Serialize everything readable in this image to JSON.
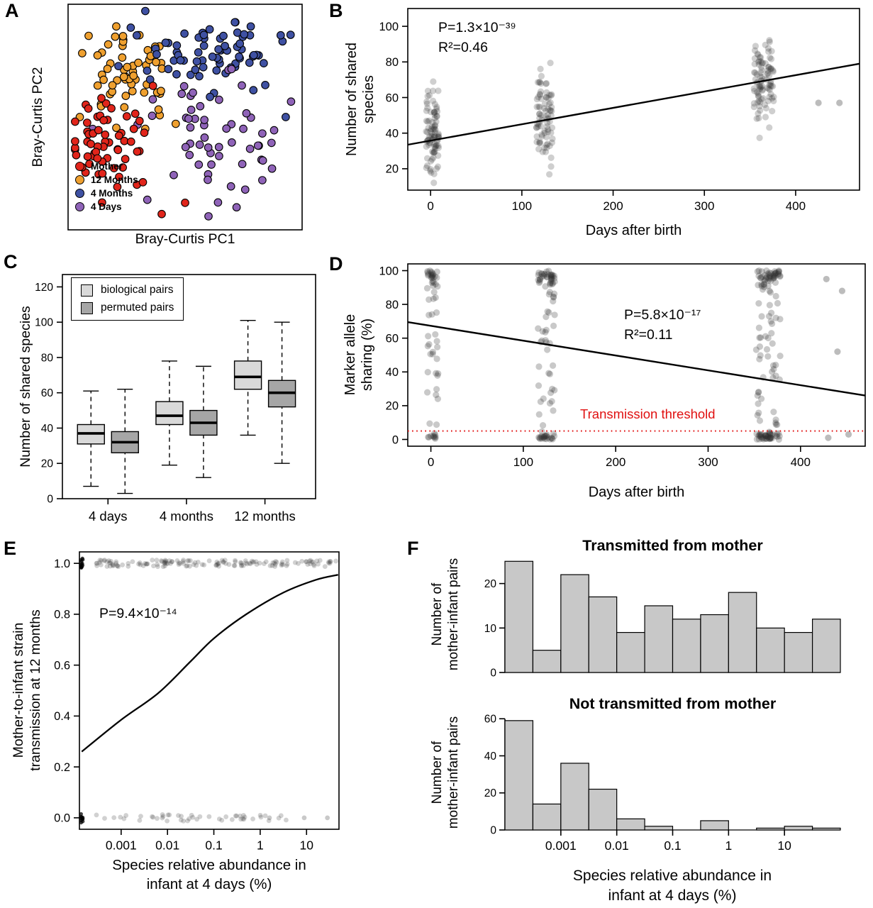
{
  "chart_data": [
    {
      "panel": "A",
      "type": "scatter",
      "xlabel": "Bray-Curtis PC1",
      "ylabel": "Bray-Curtis PC2",
      "legend": [
        {
          "label": "Mother",
          "color": "#e1251b"
        },
        {
          "label": "12 Months",
          "color": "#efa02f"
        },
        {
          "label": "4 Months",
          "color": "#3f51a3"
        },
        {
          "label": "4 Days",
          "color": "#8f63b8"
        }
      ],
      "groups": [
        {
          "name": "12 Months",
          "color": "#efa02f",
          "n": 58,
          "cx": 0.27,
          "cy": 0.7,
          "sx": 0.1,
          "sy": 0.11,
          "extras": [
            [
              0.05,
              0.5
            ],
            [
              0.46,
              0.47
            ]
          ]
        },
        {
          "name": "4 Months",
          "color": "#3f51a3",
          "n": 72,
          "cx": 0.6,
          "cy": 0.79,
          "sx": 0.16,
          "sy": 0.095,
          "extras": [
            [
              0.33,
              0.97
            ],
            [
              0.93,
              0.5
            ]
          ]
        },
        {
          "name": "4 Days",
          "color": "#8f63b8",
          "n": 55,
          "cx": 0.63,
          "cy": 0.44,
          "sx": 0.155,
          "sy": 0.13,
          "extras": [
            [
              0.72,
              0.1
            ],
            [
              0.83,
              0.22
            ],
            [
              0.6,
              0.06
            ]
          ]
        },
        {
          "name": "Mother",
          "color": "#e1251b",
          "n": 60,
          "cx": 0.16,
          "cy": 0.4,
          "sx": 0.085,
          "sy": 0.13,
          "extras": [
            [
              0.4,
              0.07
            ],
            [
              0.5,
              0.12
            ]
          ]
        }
      ]
    },
    {
      "panel": "B",
      "type": "scatter",
      "xlabel": "Days after birth",
      "ylabel_lines": [
        "Number of shared",
        "species"
      ],
      "annotation": [
        "P=1.3×10⁻³⁹",
        "R²=0.46"
      ],
      "xlim": [
        -25,
        470
      ],
      "ylim": [
        8,
        110
      ],
      "xticks": [
        0,
        100,
        200,
        300,
        400
      ],
      "yticks": [
        20,
        40,
        60,
        80,
        100
      ],
      "clusters": [
        {
          "x": 2,
          "n": 92,
          "y_mean": 40,
          "y_sd": 13,
          "y_min": 10,
          "y_max": 76,
          "x_jitter": 7
        },
        {
          "x": 125,
          "n": 82,
          "y_mean": 50,
          "y_sd": 12,
          "y_min": 16,
          "y_max": 80,
          "x_jitter": 9
        },
        {
          "x": 365,
          "n": 96,
          "y_mean": 70,
          "y_sd": 12,
          "y_min": 36,
          "y_max": 102,
          "x_jitter": 11
        }
      ],
      "extra_points": [
        [
          425,
          57
        ],
        [
          448,
          57
        ]
      ],
      "regression": {
        "x1": -25,
        "y1": 33.5,
        "x2": 470,
        "y2": 79
      }
    },
    {
      "panel": "C",
      "type": "box",
      "ylabel": "Number of shared species",
      "ylim": [
        0,
        127
      ],
      "yticks": [
        0,
        20,
        40,
        60,
        80,
        100,
        120
      ],
      "categories": [
        "4 days",
        "4 months",
        "12 months"
      ],
      "series": [
        {
          "name": "biological pairs",
          "color": "#d9d9d9",
          "stats": [
            {
              "lo": 7,
              "q1": 31,
              "med": 37,
              "q3": 42,
              "hi": 61
            },
            {
              "lo": 19,
              "q1": 42,
              "med": 47,
              "q3": 55,
              "hi": 78
            },
            {
              "lo": 36,
              "q1": 62,
              "med": 69,
              "q3": 78,
              "hi": 101
            }
          ]
        },
        {
          "name": "permuted pairs",
          "color": "#a6a6a6",
          "stats": [
            {
              "lo": 3,
              "q1": 26,
              "med": 32,
              "q3": 38,
              "hi": 62
            },
            {
              "lo": 12,
              "q1": 36,
              "med": 43,
              "q3": 50,
              "hi": 75
            },
            {
              "lo": 20,
              "q1": 52,
              "med": 60,
              "q3": 67,
              "hi": 100
            }
          ]
        }
      ]
    },
    {
      "panel": "D",
      "type": "scatter",
      "xlabel": "Days after birth",
      "ylabel_lines": [
        "Marker allele",
        "sharing (%)"
      ],
      "annotation": [
        "P=5.8×10⁻¹⁷",
        "R²=0.11"
      ],
      "threshold": {
        "y": 5,
        "label": "Transmission threshold",
        "color": "#e01010"
      },
      "xlim": [
        -25,
        470
      ],
      "ylim": [
        -4,
        104
      ],
      "xticks": [
        0,
        100,
        200,
        300,
        400
      ],
      "yticks": [
        0,
        20,
        40,
        60,
        80,
        100
      ],
      "clusters": [
        {
          "x": 2,
          "n": 62,
          "x_jitter": 6,
          "frac_top": 0.42,
          "frac_bot": 0.2
        },
        {
          "x": 125,
          "n": 96,
          "x_jitter": 9,
          "frac_top": 0.38,
          "frac_bot": 0.22
        },
        {
          "x": 365,
          "n": 140,
          "x_jitter": 13,
          "frac_top": 0.3,
          "frac_bot": 0.32
        }
      ],
      "extra_points": [
        [
          428,
          95
        ],
        [
          445,
          88
        ],
        [
          440,
          52
        ],
        [
          452,
          3
        ],
        [
          430,
          1
        ]
      ],
      "regression": {
        "x1": -25,
        "y1": 69.5,
        "x2": 470,
        "y2": 26
      }
    },
    {
      "panel": "E",
      "type": "logistic-scatter",
      "xlabel_lines": [
        "Species relative abundance in",
        "infant at 4 days (%)"
      ],
      "ylabel_lines": [
        "Mother-to-infant strain",
        "transmission at 12 months"
      ],
      "annotation": [
        "P=9.4×10⁻¹⁴"
      ],
      "xlim_log10": [
        -3.9,
        1.7
      ],
      "ylim": [
        -0.045,
        1.045
      ],
      "xticks": [
        {
          "v": -3,
          "label": "0.001"
        },
        {
          "v": -2,
          "label": "0.01"
        },
        {
          "v": -1,
          "label": "0.1"
        },
        {
          "v": 0,
          "label": "1"
        },
        {
          "v": 1,
          "label": "10"
        }
      ],
      "yticks": [
        {
          "v": 0,
          "label": "0.0"
        },
        {
          "v": 0.2,
          "label": "0.2"
        },
        {
          "v": 0.4,
          "label": "0.4"
        },
        {
          "v": 0.6,
          "label": "0.6"
        },
        {
          "v": 0.8,
          "label": "0.8"
        },
        {
          "v": 1,
          "label": "1.0"
        }
      ],
      "edge_blobs": [
        {
          "x": -3.85,
          "y": 1.0,
          "n": 12
        },
        {
          "x": -3.85,
          "y": 0.0,
          "n": 10
        }
      ],
      "spreads": [
        {
          "y": 1.0,
          "n": 150,
          "x_min": -3.55,
          "x_max": 1.65,
          "bias": 1.25
        },
        {
          "y": 0.0,
          "n": 48,
          "x_min": -3.55,
          "x_max": 0.6,
          "bias": 1.0
        }
      ],
      "extra_points": [
        [
          0.95,
          0
        ],
        [
          1.45,
          0
        ],
        [
          0.2,
          0
        ]
      ],
      "curve": [
        [
          -3.85,
          0.26
        ],
        [
          -3.0,
          0.385
        ],
        [
          -2.2,
          0.49
        ],
        [
          -1.5,
          0.615
        ],
        [
          -1.0,
          0.705
        ],
        [
          -0.3,
          0.8
        ],
        [
          0.5,
          0.885
        ],
        [
          1.2,
          0.935
        ],
        [
          1.68,
          0.955
        ]
      ]
    },
    {
      "panel": "F",
      "type": "histogram",
      "titles": [
        "Transmitted from mother",
        "Not transmitted from mother"
      ],
      "ylabel_lines": [
        "Number of",
        "mother-infant pairs"
      ],
      "xlabel_lines": [
        "Species relative abundance in",
        "infant at 4 days (%)"
      ],
      "bin_edges_log10": [
        -4,
        -3.5,
        -3,
        -2.5,
        -2,
        -1.5,
        -1,
        -0.5,
        0,
        0.5,
        1,
        1.5,
        2
      ],
      "xticks": [
        {
          "v": -3,
          "label": "0.001"
        },
        {
          "v": -2,
          "label": "0.01"
        },
        {
          "v": -1,
          "label": "0.1"
        },
        {
          "v": 0,
          "label": "1"
        },
        {
          "v": 1,
          "label": "10"
        }
      ],
      "top": {
        "values": [
          25,
          5,
          22,
          17,
          9,
          15,
          12,
          13,
          18,
          10,
          9,
          12
        ],
        "ylim": [
          0,
          26
        ],
        "yticks": [
          0,
          10,
          20
        ]
      },
      "bottom": {
        "values": [
          59,
          14,
          36,
          22,
          6,
          2,
          0,
          5,
          0,
          1,
          2,
          1
        ],
        "ylim": [
          0,
          62
        ],
        "yticks": [
          0,
          20,
          40,
          60
        ]
      },
      "bar_color": "#c8c8c8"
    }
  ],
  "point_style": {
    "fill": "#2e2e2e",
    "opacity": 0.23
  }
}
